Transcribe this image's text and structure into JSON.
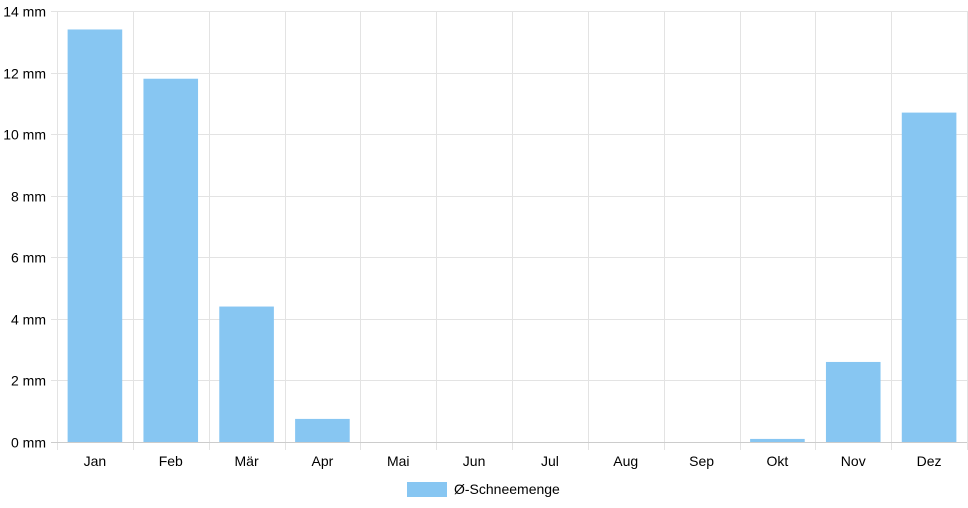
{
  "chart_data": {
    "type": "bar",
    "categories": [
      "Jan",
      "Feb",
      "Mär",
      "Apr",
      "Mai",
      "Jun",
      "Jul",
      "Aug",
      "Sep",
      "Okt",
      "Nov",
      "Dez"
    ],
    "series": [
      {
        "name": "Ø-Schneemenge",
        "values": [
          13.4,
          11.8,
          4.4,
          0.75,
          0,
          0,
          0,
          0,
          0,
          0.1,
          2.6,
          10.7
        ]
      }
    ],
    "ylim": [
      0,
      14
    ],
    "y_ticks": [
      0,
      2,
      4,
      6,
      8,
      10,
      12,
      14
    ],
    "y_unit": "mm",
    "grid": true,
    "legend_position": "bottom",
    "colors": {
      "bar": "#87c6f2",
      "grid": "#e3e3e3",
      "axis": "#cccccc"
    }
  }
}
